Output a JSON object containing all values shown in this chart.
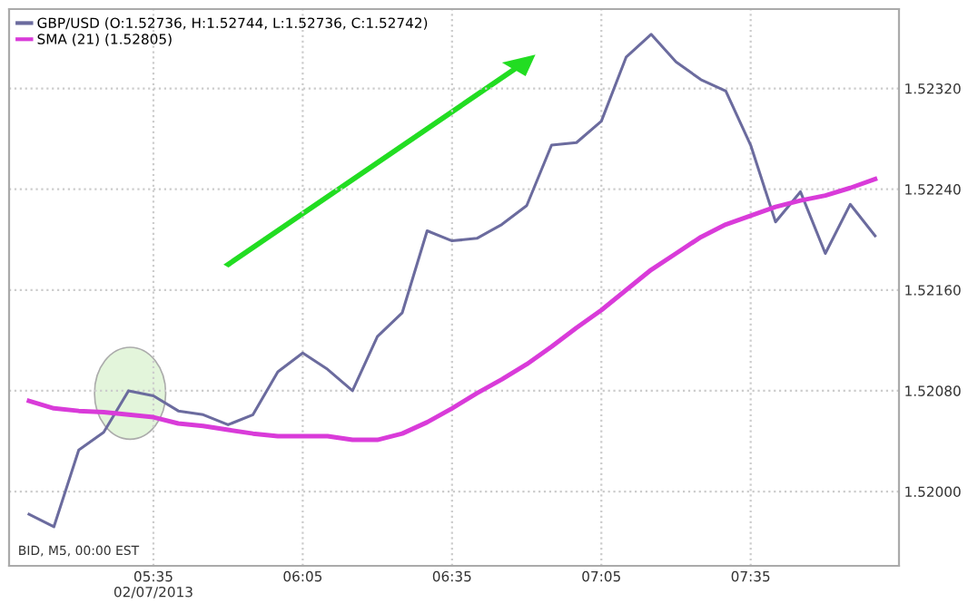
{
  "chart_data": {
    "type": "line",
    "x": [
      5.16667,
      5.25,
      5.33333,
      5.41667,
      5.5,
      5.58333,
      5.66667,
      5.75,
      5.83333,
      5.91667,
      6.0,
      6.08333,
      6.16667,
      6.25,
      6.33333,
      6.41667,
      6.5,
      6.58333,
      6.66667,
      6.75,
      6.83333,
      6.91667,
      7.0,
      7.08333,
      7.16667,
      7.25,
      7.33333,
      7.41667,
      7.5,
      7.58333,
      7.66667,
      7.75,
      7.83333,
      7.91667,
      8.0
    ],
    "series": [
      {
        "name": "GBP/USD (O:1.52736, H:1.52744, L:1.52736, C:1.52742)",
        "color": "#6b6b9e",
        "values": [
          1.51982,
          1.51972,
          1.52033,
          1.52047,
          1.5208,
          1.52076,
          1.52064,
          1.52061,
          1.52053,
          1.52061,
          1.52095,
          1.5211,
          1.52097,
          1.5208,
          1.52123,
          1.52142,
          1.52207,
          1.52199,
          1.52201,
          1.52212,
          1.52227,
          1.52275,
          1.52277,
          1.52294,
          1.52345,
          1.52363,
          1.52341,
          1.52327,
          1.52318,
          1.52275,
          1.52214,
          1.52238,
          1.52189,
          1.52228,
          1.52203
        ]
      },
      {
        "name": "SMA (21) (1.52805)",
        "color": "#d93bd9",
        "values": [
          1.52072,
          1.52066,
          1.52064,
          1.52063,
          1.52061,
          1.52059,
          1.52054,
          1.52052,
          1.52049,
          1.52046,
          1.52044,
          1.52044,
          1.52044,
          1.52041,
          1.52041,
          1.52046,
          1.52055,
          1.52066,
          1.52078,
          1.52089,
          1.52101,
          1.52115,
          1.5213,
          1.52144,
          1.5216,
          1.52176,
          1.52189,
          1.52202,
          1.52212,
          1.52219,
          1.52226,
          1.52231,
          1.52235,
          1.52241,
          1.52248
        ]
      }
    ],
    "xlim": [
      5.1,
      8.08
    ],
    "xticks": [
      {
        "value": 5.58333,
        "label": "05:35\n02/07/2013"
      },
      {
        "value": 6.08333,
        "label": "06:05"
      },
      {
        "value": 6.58333,
        "label": "06:35"
      },
      {
        "value": 7.08333,
        "label": "07:05"
      },
      {
        "value": 7.58333,
        "label": "07:35"
      }
    ],
    "ylim": [
      1.51941,
      1.52383
    ],
    "yticks": [
      {
        "value": 1.52,
        "label": "1.52000"
      },
      {
        "value": 1.5208,
        "label": "1.52080"
      },
      {
        "value": 1.5216,
        "label": "1.52160"
      },
      {
        "value": 1.5224,
        "label": "1.52240"
      },
      {
        "value": 1.5232,
        "label": "1.52320"
      }
    ],
    "grid": true,
    "legend": "top left",
    "line_style": "solid",
    "annotations": [
      "BID, M5, 00:00 EST"
    ]
  }
}
